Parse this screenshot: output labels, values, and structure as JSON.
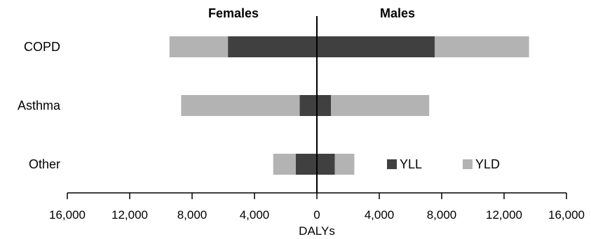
{
  "chart_data": {
    "type": "bar",
    "orientation": "horizontal",
    "stacked": true,
    "diverging": true,
    "categories": [
      "COPD",
      "Asthma",
      "Other"
    ],
    "group_labels": {
      "left": "Females",
      "right": "Males"
    },
    "xlabel": "DALYs",
    "ylabel": "",
    "xlim": [
      -16000,
      16000
    ],
    "x_ticks": [
      -16000,
      -12000,
      -8000,
      -4000,
      0,
      4000,
      8000,
      12000,
      16000
    ],
    "x_tick_labels": [
      "16,000",
      "12,000",
      "8,000",
      "4,000",
      "0",
      "4,000",
      "8,000",
      "12,000",
      "16,000"
    ],
    "series": [
      {
        "name": "YLL",
        "color": "#404040",
        "females": [
          5700,
          1100,
          1350
        ],
        "males": [
          7550,
          900,
          1150
        ]
      },
      {
        "name": "YLD",
        "color": "#b3b3b3",
        "females": [
          3750,
          7600,
          1450
        ],
        "males": [
          6050,
          6300,
          1250
        ]
      }
    ],
    "legend": {
      "position": "lower-right",
      "entries": [
        "YLL",
        "YLD"
      ]
    },
    "grid": false
  }
}
